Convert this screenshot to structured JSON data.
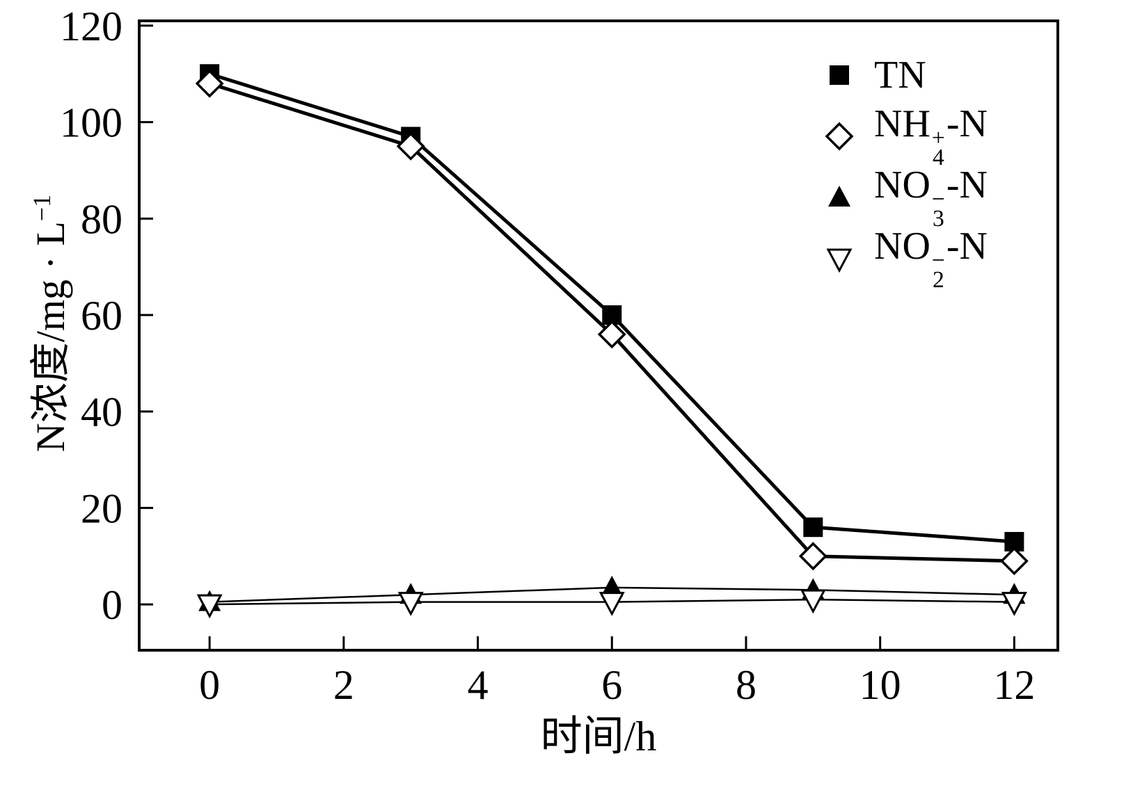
{
  "figure": {
    "background": "#ffffff",
    "ink_color": "#000000"
  },
  "chart_data": {
    "type": "line",
    "x": [
      0,
      3,
      6,
      9,
      12
    ],
    "series": [
      {
        "id": "tn",
        "name": "TN",
        "marker": "filled-square",
        "line_width": 5,
        "values": [
          110,
          97,
          60,
          16,
          13
        ],
        "label_parts": {
          "prefix": "TN",
          "sub": "",
          "sup": "",
          "suffix": ""
        }
      },
      {
        "id": "nh4-n",
        "name": "NH4+-N",
        "marker": "open-diamond",
        "line_width": 5,
        "values": [
          108,
          95,
          56,
          10,
          9
        ],
        "label_parts": {
          "prefix": "NH",
          "sub": "4",
          "sup": "+",
          "suffix": "-N"
        }
      },
      {
        "id": "no3-n",
        "name": "NO3--N",
        "marker": "filled-triangle-up",
        "line_width": 2.5,
        "values": [
          0.5,
          2,
          3.5,
          3,
          2
        ],
        "label_parts": {
          "prefix": "NO",
          "sub": "3",
          "sup": "−",
          "suffix": "-N"
        }
      },
      {
        "id": "no2-n",
        "name": "NO2--N",
        "marker": "open-triangle-down",
        "line_width": 2.5,
        "values": [
          0,
          0.5,
          0.5,
          1,
          0.5
        ],
        "label_parts": {
          "prefix": "NO",
          "sub": "2",
          "sup": "−",
          "suffix": "-N"
        }
      }
    ],
    "xlabel": "时间/h",
    "ylabel": {
      "text": "N浓度/mg · L",
      "sup": "−1"
    },
    "xticks": [
      0,
      2,
      4,
      6,
      8,
      10,
      12
    ],
    "yticks": [
      0,
      20,
      40,
      60,
      80,
      100,
      120
    ],
    "xlim": [
      -1.05,
      12.65
    ],
    "ylim": [
      -9.5,
      121
    ],
    "grid": false,
    "legend_position": "top-right"
  }
}
